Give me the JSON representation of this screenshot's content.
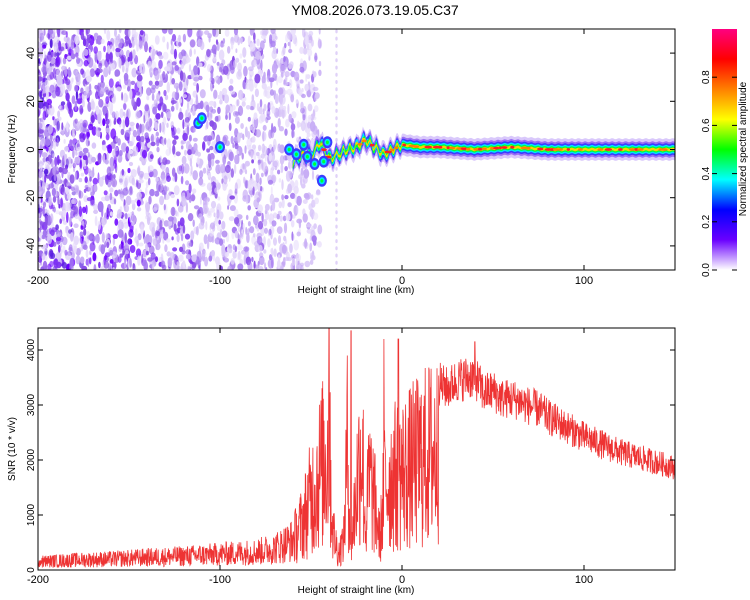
{
  "title": "YM08.2026.073.19.05.C37",
  "chart_data": [
    {
      "type": "heatmap",
      "name": "spectrogram",
      "xlabel": "Height of straight line (km)",
      "ylabel": "Frequency (Hz)",
      "xlim": [
        -200,
        150
      ],
      "ylim": [
        -50,
        50
      ],
      "xticks": [
        -200,
        -100,
        0,
        100
      ],
      "xtick_labels": [
        "-200",
        "-100",
        "0",
        "100"
      ],
      "yticks": [
        -40,
        -20,
        0,
        20,
        40
      ],
      "ytick_labels": [
        "-40",
        "-20",
        "0",
        "20",
        "40"
      ],
      "colorbar": {
        "label": "Normalized spectral amplitude",
        "range": [
          0,
          1
        ],
        "ticks": [
          0.0,
          0.2,
          0.4,
          0.6,
          0.8
        ],
        "tick_labels": [
          "0.0",
          "0.2",
          "0.4",
          "0.6",
          "0.8"
        ],
        "colors": [
          "#ffffff",
          "#6a00ff",
          "#0000ff",
          "#00ffff",
          "#00ff00",
          "#ffff00",
          "#ff8000",
          "#ff0000",
          "#ff0080"
        ]
      },
      "noise_region_x": [
        -200,
        -60
      ],
      "signal_line": {
        "x": [
          -80,
          -70,
          -60,
          -55,
          -50,
          -45,
          -40,
          -35,
          -30,
          -25,
          -20,
          -15,
          -10,
          -5,
          0,
          10,
          20,
          40,
          60,
          80,
          100,
          120,
          150
        ],
        "y": [
          2,
          1,
          -5,
          -2,
          -3,
          3,
          -4,
          -2,
          0,
          1,
          4,
          1,
          -2,
          0,
          2,
          1,
          1,
          0,
          1,
          0,
          0,
          0,
          0
        ]
      }
    },
    {
      "type": "line",
      "name": "snr",
      "xlabel": "Height of straight line (km)",
      "ylabel": "SNR (10 * v/v)",
      "xlim": [
        -200,
        150
      ],
      "ylim": [
        0,
        4400
      ],
      "xticks": [
        -200,
        -100,
        0,
        100
      ],
      "xtick_labels": [
        "-200",
        "-100",
        "0",
        "100"
      ],
      "yticks": [
        0,
        1000,
        2000,
        3000,
        4000
      ],
      "ytick_labels": [
        "0",
        "1000",
        "2000",
        "3000",
        "4000"
      ],
      "color": "#ee3333",
      "envelope": {
        "x": [
          -200,
          -180,
          -160,
          -140,
          -120,
          -100,
          -80,
          -70,
          -60,
          -55,
          -50,
          -45,
          -40,
          -38,
          -35,
          -32,
          -30,
          -28,
          -25,
          -22,
          -20,
          -18,
          -15,
          -12,
          -10,
          -5,
          0,
          5,
          10,
          15,
          20,
          25,
          30,
          35,
          40,
          45,
          50,
          55,
          60,
          65,
          70,
          75,
          80,
          90,
          100,
          110,
          120,
          130,
          140,
          150
        ],
        "y": [
          250,
          300,
          330,
          380,
          420,
          480,
          550,
          650,
          900,
          1400,
          2200,
          3000,
          3700,
          1200,
          500,
          900,
          3800,
          600,
          2500,
          3900,
          1200,
          2800,
          2000,
          900,
          2600,
          2800,
          2900,
          3100,
          3300,
          3500,
          3650,
          3550,
          3700,
          3750,
          3800,
          3450,
          3500,
          3350,
          3350,
          3300,
          3200,
          3150,
          3000,
          2800,
          2600,
          2450,
          2300,
          2200,
          2100,
          2000
        ]
      },
      "spike_peaks": [
        {
          "x": -40,
          "y": 4400
        },
        {
          "x": -28,
          "y": 4350
        },
        {
          "x": -10,
          "y": 4200
        },
        {
          "x": -2,
          "y": 4200
        },
        {
          "x": 40,
          "y": 4150
        }
      ]
    }
  ]
}
